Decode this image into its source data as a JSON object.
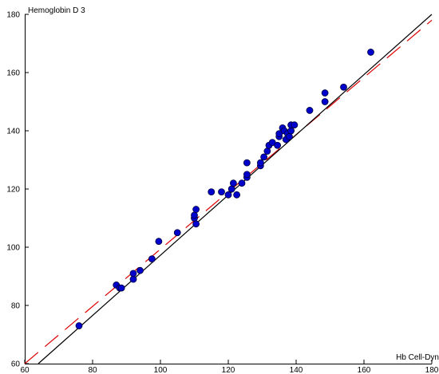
{
  "chart_data": {
    "type": "scatter",
    "xlabel": "Hb Cell-Dyn",
    "ylabel": "Hemoglobin D 3",
    "xlim": [
      60,
      180
    ],
    "ylim": [
      60,
      180
    ],
    "x_ticks": [
      60,
      80,
      100,
      120,
      140,
      160,
      180
    ],
    "y_ticks": [
      60,
      80,
      100,
      120,
      140,
      160,
      180
    ],
    "x_tick_labels": [
      "60",
      "80",
      "100",
      "120",
      "140",
      "160",
      "180"
    ],
    "y_tick_labels": [
      "60",
      "80",
      "100",
      "120",
      "140",
      "160",
      "180"
    ],
    "grid": false,
    "colors": {
      "points": "#0000cc",
      "point_edge": "#00003a",
      "identity_line": "#000000",
      "fit_line": "#dd0000"
    },
    "identity_line": [
      [
        64,
        60
      ],
      [
        180,
        180
      ]
    ],
    "fit_line": [
      [
        60,
        60
      ],
      [
        180,
        178
      ]
    ],
    "points": [
      [
        76,
        73
      ],
      [
        87,
        87
      ],
      [
        88,
        86
      ],
      [
        88.5,
        86
      ],
      [
        92,
        89
      ],
      [
        92,
        91
      ],
      [
        94,
        92
      ],
      [
        97.5,
        96
      ],
      [
        99.5,
        102
      ],
      [
        105,
        105
      ],
      [
        110,
        110
      ],
      [
        110,
        111
      ],
      [
        110.5,
        113
      ],
      [
        110.5,
        108
      ],
      [
        115,
        119
      ],
      [
        118,
        119
      ],
      [
        120,
        118
      ],
      [
        121,
        120
      ],
      [
        121.5,
        122
      ],
      [
        122.5,
        118
      ],
      [
        124,
        122
      ],
      [
        125.5,
        124
      ],
      [
        125.5,
        125
      ],
      [
        125.5,
        129
      ],
      [
        129.5,
        128
      ],
      [
        129.5,
        129
      ],
      [
        130.5,
        131
      ],
      [
        131.5,
        133
      ],
      [
        132,
        135
      ],
      [
        133,
        136
      ],
      [
        134.5,
        135
      ],
      [
        135,
        138
      ],
      [
        135,
        139
      ],
      [
        136,
        141
      ],
      [
        136.5,
        140
      ],
      [
        137,
        137
      ],
      [
        137.5,
        139
      ],
      [
        138,
        138
      ],
      [
        138.5,
        140
      ],
      [
        138.5,
        142
      ],
      [
        139.5,
        142
      ],
      [
        144,
        147
      ],
      [
        148.5,
        150
      ],
      [
        148.5,
        153
      ],
      [
        154,
        155
      ],
      [
        162,
        167
      ]
    ]
  }
}
